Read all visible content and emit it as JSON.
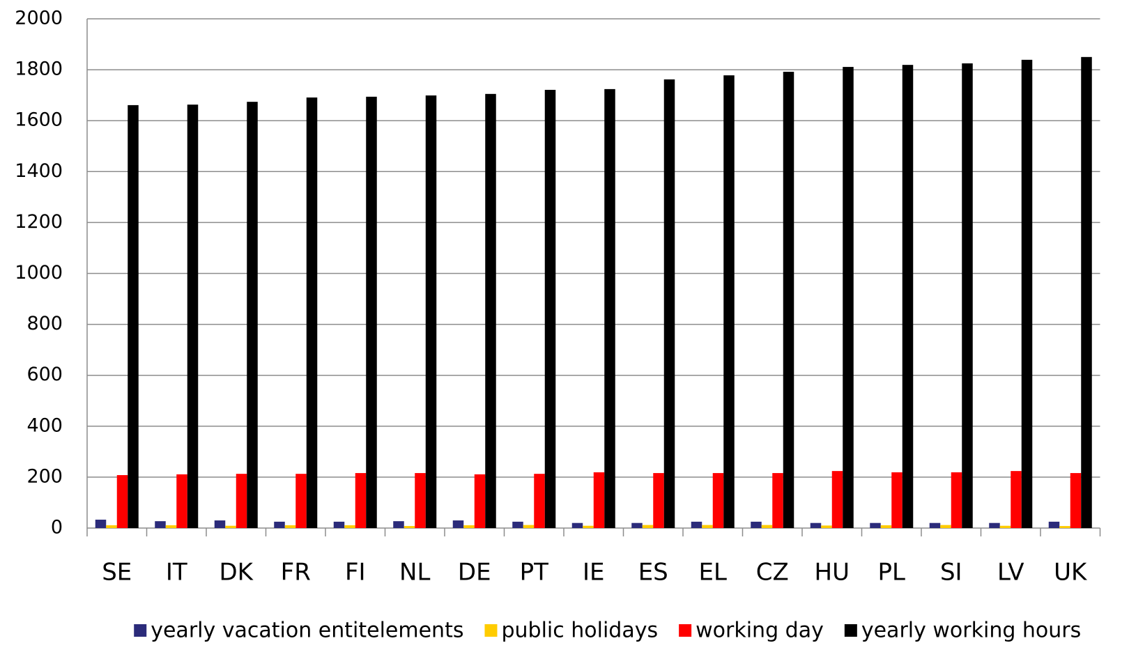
{
  "chart_data": {
    "type": "bar",
    "categories": [
      "SE",
      "IT",
      "DK",
      "FR",
      "FI",
      "NL",
      "DE",
      "PT",
      "IE",
      "ES",
      "EL",
      "CZ",
      "HU",
      "PL",
      "SI",
      "LV",
      "UK"
    ],
    "series": [
      {
        "name": "yearly vacation entitelements",
        "color": "#2b2b7a",
        "values": [
          33,
          27,
          30,
          25,
          25,
          27,
          30,
          25,
          20,
          20,
          25,
          25,
          20,
          20,
          20,
          20,
          25
        ]
      },
      {
        "name": "public holidays",
        "color": "#ffcc00",
        "values": [
          11,
          11,
          9,
          11,
          11,
          8,
          11,
          12,
          9,
          12,
          12,
          12,
          10,
          11,
          12,
          9,
          8
        ]
      },
      {
        "name": "working day",
        "color": "#ff0000",
        "values": [
          208,
          211,
          213,
          213,
          216,
          216,
          211,
          213,
          219,
          216,
          216,
          216,
          224,
          219,
          219,
          224,
          216
        ]
      },
      {
        "name": "yearly working hours",
        "color": "#000000",
        "values": [
          1661,
          1663,
          1674,
          1691,
          1694,
          1699,
          1705,
          1721,
          1724,
          1762,
          1778,
          1792,
          1811,
          1819,
          1825,
          1839,
          1850
        ]
      }
    ],
    "ylim": [
      0,
      2000
    ],
    "yticks": [
      0,
      200,
      400,
      600,
      800,
      1000,
      1200,
      1400,
      1600,
      1800,
      2000
    ],
    "grid": true,
    "legend": "bottom"
  }
}
